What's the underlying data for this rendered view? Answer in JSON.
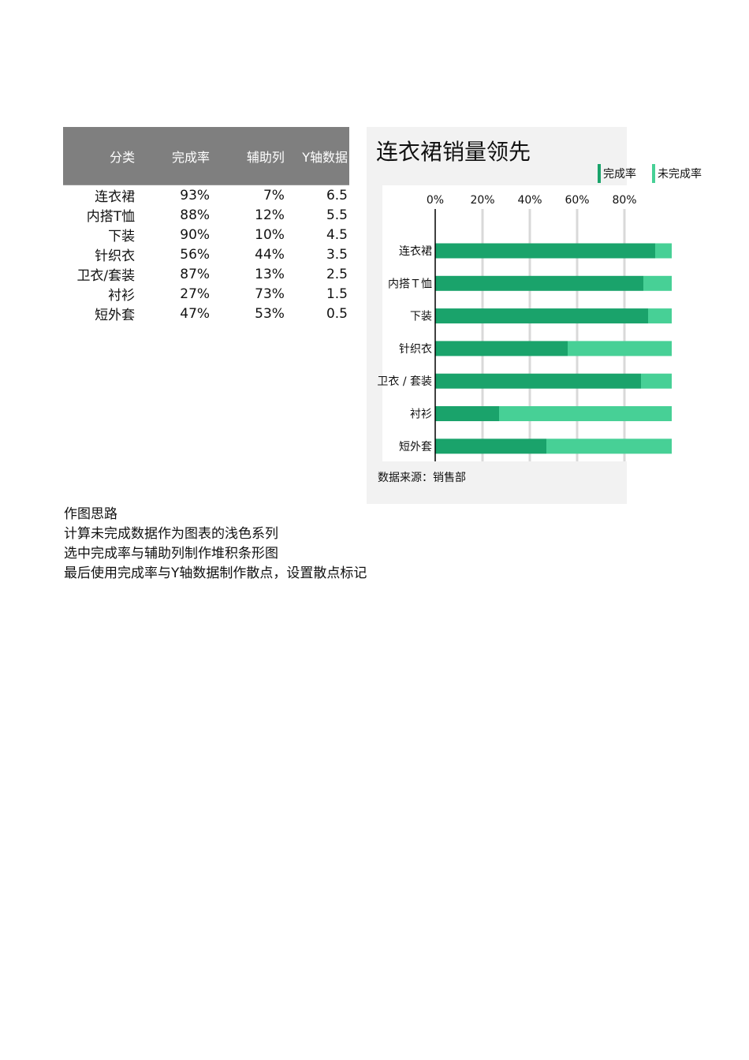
{
  "table": {
    "headers": [
      "分类",
      "完成率",
      "辅助列",
      "Y轴数据"
    ],
    "rows": [
      [
        "连衣裙",
        "93%",
        "7%",
        "6.5"
      ],
      [
        "内搭T恤",
        "88%",
        "12%",
        "5.5"
      ],
      [
        "下装",
        "90%",
        "10%",
        "4.5"
      ],
      [
        "针织衣",
        "56%",
        "44%",
        "3.5"
      ],
      [
        "卫衣/套装",
        "87%",
        "13%",
        "2.5"
      ],
      [
        "衬衫",
        "27%",
        "73%",
        "1.5"
      ],
      [
        "短外套",
        "47%",
        "53%",
        "0.5"
      ]
    ]
  },
  "chart": {
    "title": "连衣裙销量领先",
    "source": "数据来源：销售部",
    "legend": [
      "完成率",
      "未完成率"
    ],
    "colors": {
      "done": "#1aa36b",
      "remaining": "#47d096",
      "grid": "#d9d9d9",
      "axis": "#000000"
    }
  },
  "chart_data": {
    "type": "bar",
    "orientation": "horizontal",
    "stacked": true,
    "categories": [
      "连衣裙",
      "内搭Ｔ恤",
      "下装",
      "针织衣",
      "卫衣 / 套装",
      "衬衫",
      "短外套"
    ],
    "series": [
      {
        "name": "完成率",
        "values": [
          0.93,
          0.88,
          0.9,
          0.56,
          0.87,
          0.27,
          0.47
        ]
      },
      {
        "name": "未完成率",
        "values": [
          0.07,
          0.12,
          0.1,
          0.44,
          0.13,
          0.73,
          0.53
        ]
      }
    ],
    "x_ticks": [
      "0%",
      "20%",
      "40%",
      "60%",
      "80%"
    ],
    "xlim": [
      0,
      1
    ],
    "legend_position": "top-right",
    "grid": true
  },
  "notes": {
    "title": "作图思路",
    "lines": [
      "计算未完成数据作为图表的浅色系列",
      "选中完成率与辅助列制作堆积条形图",
      "最后使用完成率与Y轴数据制作散点，设置散点标记"
    ]
  }
}
